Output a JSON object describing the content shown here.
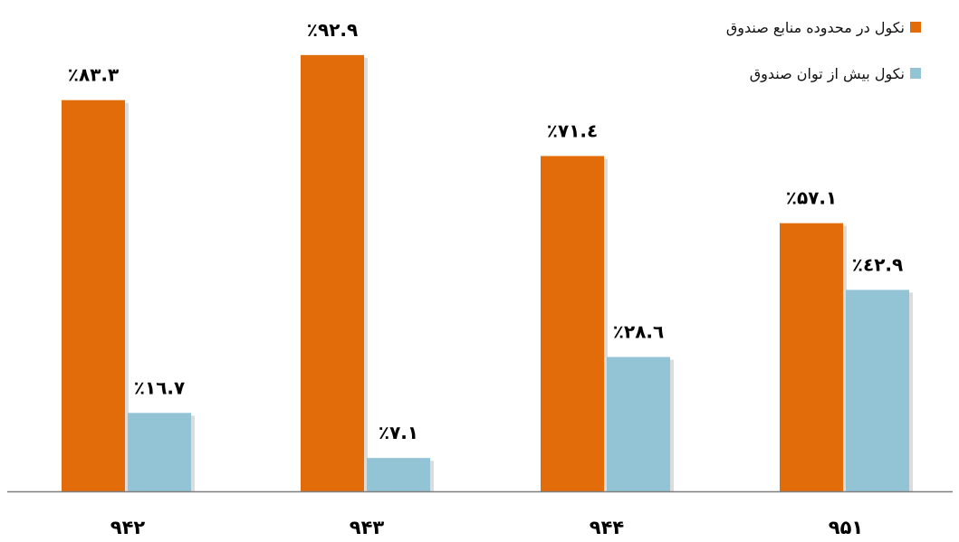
{
  "chart_data": {
    "type": "bar",
    "categories": [
      "۹۴۲",
      "۹۴۳",
      "۹۴۴",
      "۹۵۱"
    ],
    "series": [
      {
        "name": "نکول در محدوده منابع صندوق",
        "values": [
          83.3,
          92.9,
          71.4,
          57.1
        ],
        "labels": [
          "٪۸۳.۳",
          "٪۹۲.۹",
          "٪۷۱.٤",
          "٪۵۷.۱"
        ],
        "color": "#E36C0A"
      },
      {
        "name": "نکول بیش از توان صندوق",
        "values": [
          16.7,
          7.1,
          28.6,
          42.9
        ],
        "labels": [
          "٪۱٦.۷",
          "٪۷.۱",
          "٪۲۸.٦",
          "٪٤۲.۹"
        ],
        "color": "#92C4D6"
      }
    ],
    "ylim": [
      0,
      100
    ],
    "grid": false,
    "legend_position": "top-right"
  }
}
